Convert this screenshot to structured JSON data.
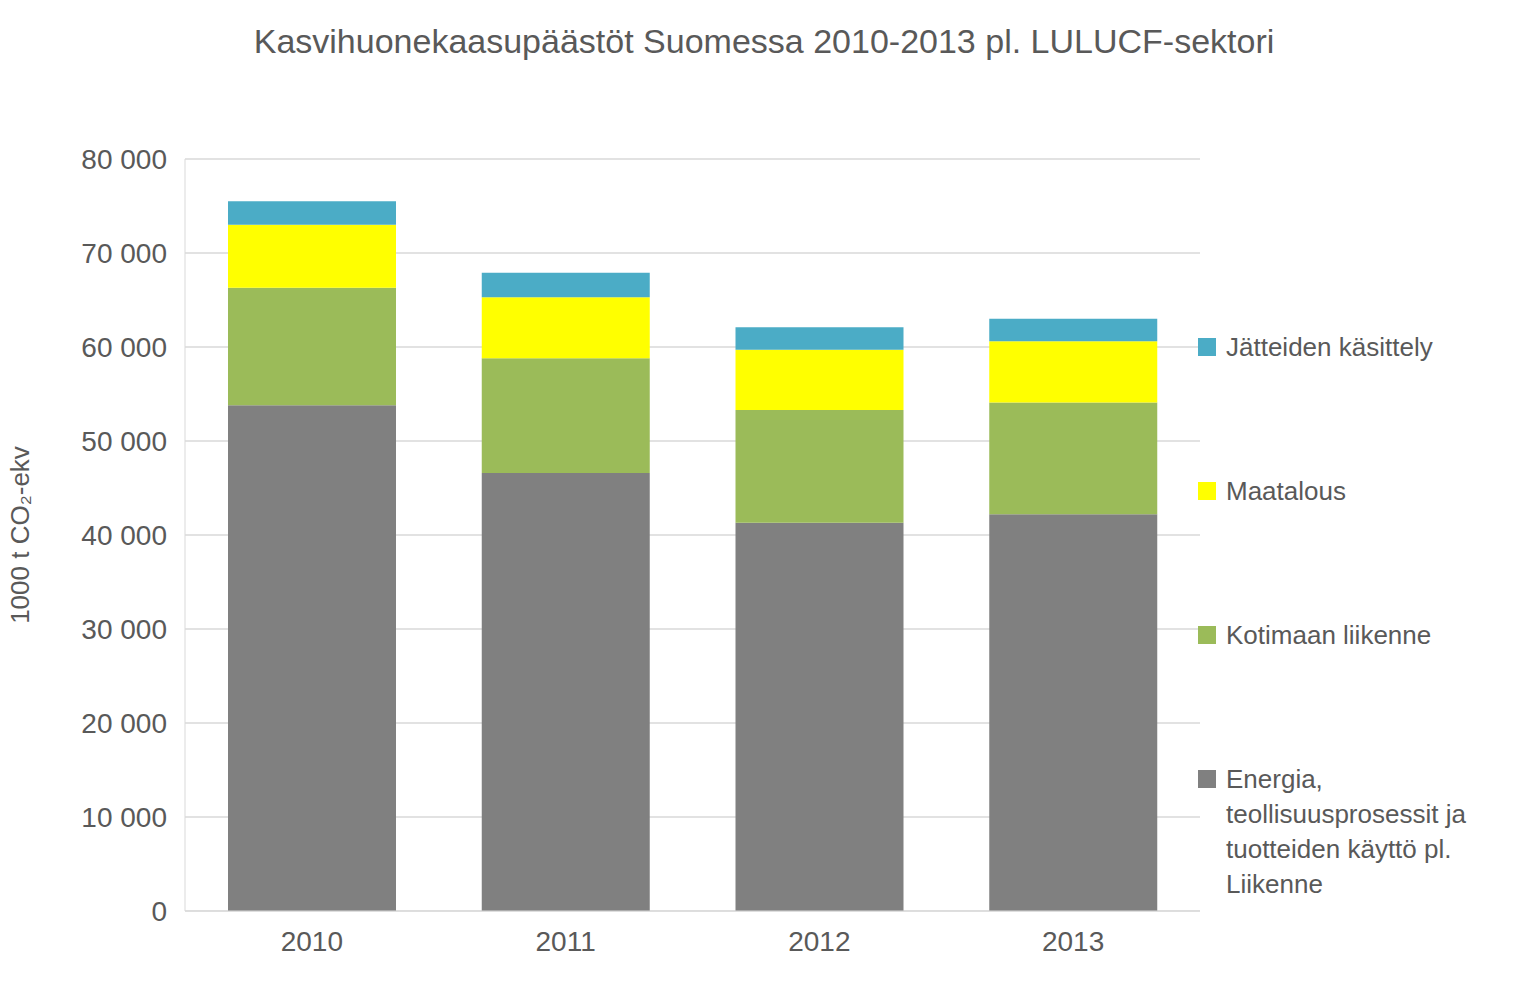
{
  "chart_data": {
    "type": "bar",
    "title": "Kasvihuonekaasupäästöt Suomessa 2010-2013 pl. LULUCF-sektori",
    "y_label": "1000 t CO₂-ekv",
    "categories": [
      "2010",
      "2011",
      "2012",
      "2013"
    ],
    "series": [
      {
        "name": "Energia, teollisuusprosessit ja tuotteiden käyttö pl. Liikenne",
        "color": "#808080",
        "values": [
          53800,
          46600,
          41300,
          42200
        ]
      },
      {
        "name": "Kotimaan liikenne",
        "color": "#9BBB59",
        "values": [
          12500,
          12200,
          12000,
          11900
        ]
      },
      {
        "name": "Maatalous",
        "color": "#FFFF00",
        "values": [
          6700,
          6500,
          6400,
          6500
        ]
      },
      {
        "name": "Jätteiden käsittely",
        "color": "#4BACC6",
        "values": [
          2500,
          2600,
          2400,
          2400
        ]
      }
    ],
    "ylim": [
      0,
      80000
    ],
    "yticks": [
      0,
      {
        "value": 10000,
        "label": "10 000"
      },
      {
        "value": 20000,
        "label": "20 000"
      },
      {
        "value": 30000,
        "label": "30 000"
      },
      {
        "value": 40000,
        "label": "40 000"
      },
      {
        "value": 50000,
        "label": "50 000"
      },
      {
        "value": 60000,
        "label": "60 000"
      },
      {
        "value": 70000,
        "label": "70 000"
      },
      {
        "value": 80000,
        "label": "80 000"
      }
    ],
    "stacked": true,
    "grid": true,
    "legend": "right"
  }
}
